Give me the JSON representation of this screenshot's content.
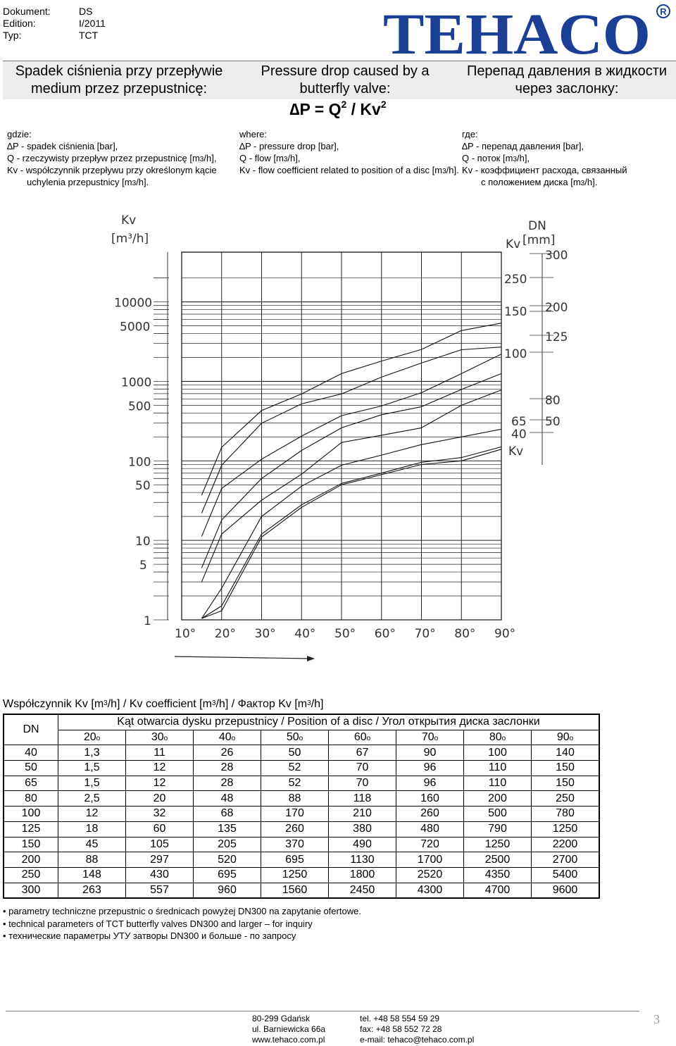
{
  "meta": {
    "doc_label": "Dokument:",
    "doc_value": "DS",
    "edition_label": "Edition:",
    "edition_value": "I/2011",
    "type_label": "Typ:",
    "type_value": "TCT"
  },
  "brand": {
    "logo_text": "TEHACO",
    "registered": "R",
    "color": "#1b3f95"
  },
  "headings": {
    "pl_line1": "Spadek ciśnienia przy przepływie",
    "pl_line2": "medium przez przepustnicę:",
    "en_line1": "Pressure drop caused by a",
    "en_line2": "butterfly valve:",
    "ru_line1": "Перепад давления в  жидкости",
    "ru_line2": "через  заслонку:"
  },
  "formula": {
    "delta": "∆",
    "lhs": "P = Q",
    "exp1": "2",
    "mid": " / Kv",
    "exp2": "2"
  },
  "definitions": {
    "pl": {
      "intro": "gdzie:",
      "p": "∆P - spadek ciśnienia [bar],",
      "q_pre": "Q   - rzeczywisty przepływ przez przepustnicę [m",
      "q_sup": "3",
      "q_post": "/h],",
      "kv1": "Kv - współczynnik   przepływu   przy   określonym   kącie",
      "kv2_pre": "uchylenia przepustnicy [m",
      "kv2_sup": "3",
      "kv2_post": "/h]."
    },
    "en": {
      "intro": "where:",
      "p": "∆P - pressure drop [bar],",
      "q_pre": "Q   - flow [m",
      "q_sup": "3",
      "q_post": "/h],",
      "kv_pre": "Kv - flow coefficient related to position of a disc [m",
      "kv_sup": "3",
      "kv_post": "/h]."
    },
    "ru": {
      "intro": "где:",
      "p": "∆P - перепад давления [bar],",
      "q_pre": "Q   - поток [m",
      "q_sup": "3",
      "q_post": "/h],",
      "kv1": "Kv -  коэффициент расхода, связанный",
      "kv2_pre": "с положением диска [m",
      "kv2_sup": "3",
      "kv2_post": "/h]."
    }
  },
  "chart_data": {
    "type": "line",
    "title": "",
    "left_axis": {
      "label_top": "Kv",
      "label_unit": "[m³/h]",
      "scale": "log",
      "ylim": [
        1,
        20000
      ],
      "tick_labels": [
        "10000",
        "5000",
        "1000",
        "500",
        "100",
        "50",
        "10",
        "5",
        "1"
      ]
    },
    "x_axis": {
      "unit": "degrees",
      "xlim": [
        10,
        90
      ],
      "tick_labels": [
        "10°",
        "20°",
        "30°",
        "40°",
        "50°",
        "60°",
        "70°",
        "80°",
        "90°"
      ]
    },
    "right_axis": {
      "dn_label": "DN",
      "dn_unit": "[mm]",
      "kv_label": "Kv",
      "kv_bottom_label": "Kv",
      "dn_values": [
        "300",
        "200",
        "125",
        "80",
        "50"
      ],
      "kv_values": [
        "250",
        "150",
        "100",
        "65",
        "40"
      ]
    },
    "grid": true,
    "series": [
      {
        "values": [
          148,
          430,
          695,
          1250,
          1800,
          2520,
          4350,
          5400
        ]
      },
      {
        "values": [
          88,
          297,
          520,
          695,
          1130,
          1700,
          2500,
          2700
        ]
      },
      {
        "values": [
          45,
          105,
          205,
          370,
          490,
          720,
          1250,
          2200
        ]
      },
      {
        "values": [
          18,
          60,
          135,
          260,
          380,
          480,
          790,
          1250
        ]
      },
      {
        "values": [
          12,
          32,
          68,
          170,
          210,
          260,
          500,
          780
        ]
      },
      {
        "values": [
          2.5,
          20,
          48,
          88,
          118,
          160,
          200,
          250
        ]
      },
      {
        "values": [
          1.5,
          12,
          28,
          52,
          70,
          96,
          110,
          150
        ]
      },
      {
        "values": [
          1.3,
          11,
          26,
          50,
          67,
          90,
          100,
          140
        ]
      }
    ],
    "x": [
      20,
      30,
      40,
      50,
      60,
      70,
      80,
      90
    ]
  },
  "table": {
    "caption_pre": "Współczynnik Kv [m",
    "caption_mid1": "/h] / Kv coefficient [m",
    "caption_mid2": "/h] / Фактор Kv [m",
    "caption_post": "/h]",
    "caption_sup": "3",
    "dn_header": "DN",
    "angle_header": "Kąt otwarcia dysku przepustnicy / Position of a disc / Угол открытия диска заслонки",
    "angles": [
      "20",
      "30",
      "40",
      "50",
      "60",
      "70",
      "80",
      "90"
    ],
    "degree_mark": "o",
    "rows": [
      {
        "dn": "40",
        "v": [
          "1,3",
          "11",
          "26",
          "50",
          "67",
          "90",
          "100",
          "140"
        ]
      },
      {
        "dn": "50",
        "v": [
          "1,5",
          "12",
          "28",
          "52",
          "70",
          "96",
          "110",
          "150"
        ]
      },
      {
        "dn": "65",
        "v": [
          "1,5",
          "12",
          "28",
          "52",
          "70",
          "96",
          "110",
          "150"
        ]
      },
      {
        "dn": "80",
        "v": [
          "2,5",
          "20",
          "48",
          "88",
          "118",
          "160",
          "200",
          "250"
        ]
      },
      {
        "dn": "100",
        "v": [
          "12",
          "32",
          "68",
          "170",
          "210",
          "260",
          "500",
          "780"
        ]
      },
      {
        "dn": "125",
        "v": [
          "18",
          "60",
          "135",
          "260",
          "380",
          "480",
          "790",
          "1250"
        ]
      },
      {
        "dn": "150",
        "v": [
          "45",
          "105",
          "205",
          "370",
          "490",
          "720",
          "1250",
          "2200"
        ]
      },
      {
        "dn": "200",
        "v": [
          "88",
          "297",
          "520",
          "695",
          "1130",
          "1700",
          "2500",
          "2700"
        ]
      },
      {
        "dn": "250",
        "v": [
          "148",
          "430",
          "695",
          "1250",
          "1800",
          "2520",
          "4350",
          "5400"
        ]
      },
      {
        "dn": "300",
        "v": [
          "263",
          "557",
          "960",
          "1560",
          "2450",
          "4300",
          "4700",
          "9600"
        ]
      }
    ]
  },
  "notes": [
    "• parametry techniczne przepustnic o średnicach powyżej DN300 na zapytanie ofertowe.",
    "• technical parameters of TCT butterfly valves DN300 and larger – for inquiry",
    "• технические параметры УТУ затворы DN300 и больше - по запросу"
  ],
  "footer": {
    "addr1": "80-299 Gdańsk",
    "addr2": "ul. Barniewicka 66a",
    "addr3": "www.tehaco.com.pl",
    "tel": "tel.  +48 58 554 59 29",
    "fax": "fax: +48 58 552 72 28",
    "email": "e-mail: tehaco@tehaco.com.pl",
    "page": "3"
  }
}
